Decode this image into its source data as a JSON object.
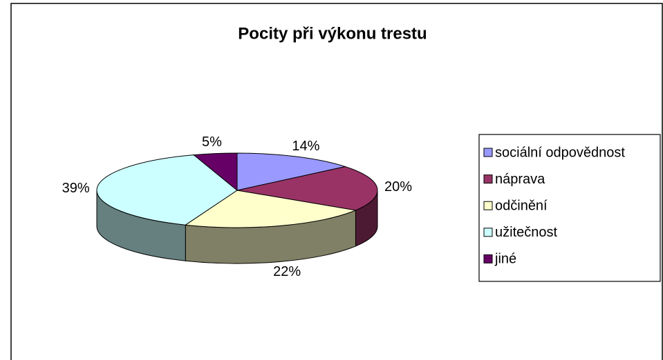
{
  "chart_data": {
    "type": "pie",
    "title": "Pocity při výkonu trestu",
    "categories": [
      "sociální odpovědnost",
      "náprava",
      "odčinění",
      "užitečnost",
      "jiné"
    ],
    "values": [
      14,
      20,
      22,
      39,
      5
    ],
    "value_labels": [
      "14%",
      "20%",
      "22%",
      "39%",
      "5%"
    ],
    "colors": [
      "#9999ff",
      "#993366",
      "#ffffcc",
      "#ccffff",
      "#660066"
    ],
    "legend": "right"
  }
}
